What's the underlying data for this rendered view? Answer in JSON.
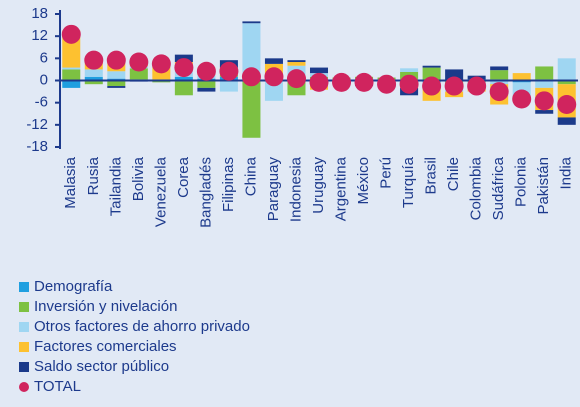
{
  "chart_data": {
    "type": "bar",
    "stacked": true,
    "categories": [
      "Malasia",
      "Rusia",
      "Tailandia",
      "Bolivia",
      "Venezuela",
      "Corea",
      "Bangladés",
      "Filipinas",
      "China",
      "Paraguay",
      "Indonesia",
      "Uruguay",
      "Argentina",
      "México",
      "Perú",
      "Turquía",
      "Brasil",
      "Chile",
      "Colombia",
      "Sudáfrica",
      "Polonia",
      "Pakistán",
      "India"
    ],
    "series": [
      {
        "name": "Demografía",
        "color": "#1f9fe0",
        "values": [
          -2,
          1,
          0.5,
          0.3,
          0.3,
          1,
          0.5,
          1,
          0.5,
          0.5,
          1,
          0.5,
          0.3,
          0.5,
          0.3,
          0.3,
          -0.5,
          0,
          0.3,
          0.3,
          -0.5,
          0.3,
          0
        ]
      },
      {
        "name": "Inversión y nivelación",
        "color": "#7dc142",
        "values": [
          3,
          -1,
          -1.5,
          3,
          -0.5,
          -4,
          -2,
          0.5,
          -15.5,
          1,
          -4,
          0.5,
          0.5,
          0.5,
          0.5,
          2,
          3.5,
          -1,
          -0.5,
          2.5,
          0,
          3.5,
          -1
        ]
      },
      {
        "name": "Otros factores de ahorro privado",
        "color": "#9fd6f2",
        "values": [
          0.5,
          2,
          2,
          0.5,
          0,
          3,
          1,
          -3,
          15,
          -5.5,
          3,
          1,
          0,
          -0.5,
          -0.3,
          1,
          -1,
          -2,
          -1,
          -1,
          -4,
          -2,
          6
        ]
      },
      {
        "name": "Factores comerciales",
        "color": "#fdc130",
        "values": [
          10,
          2,
          3,
          1.5,
          4,
          1,
          2,
          2,
          0,
          3,
          1,
          -2.5,
          -0.5,
          -0.5,
          -1,
          -2,
          -4,
          -1.5,
          -1.5,
          -5.5,
          2,
          -6,
          -9
        ]
      },
      {
        "name": "Saldo sector público",
        "color": "#1b3a8a",
        "values": [
          0,
          0.5,
          -0.5,
          -0.3,
          0.5,
          2,
          -1,
          2,
          0.5,
          1.5,
          0.5,
          1.5,
          -0.5,
          -0.5,
          -0.5,
          -2,
          0.5,
          3,
          1,
          1,
          -1,
          -1,
          -2
        ]
      },
      {
        "name": "TOTAL",
        "color": "#d0245e",
        "marker": "dot",
        "values": [
          12.5,
          5.5,
          5.5,
          5,
          4.5,
          3.5,
          2.5,
          2.5,
          1,
          1,
          0.5,
          -0.5,
          -0.5,
          -0.5,
          -1,
          -1,
          -1.5,
          -1.5,
          -1.5,
          -3,
          -5,
          -5.5,
          -6.5
        ]
      }
    ],
    "ylim": [
      -18,
      18
    ],
    "yticks": [
      -18,
      -12,
      -6,
      0,
      6,
      12,
      18
    ]
  }
}
